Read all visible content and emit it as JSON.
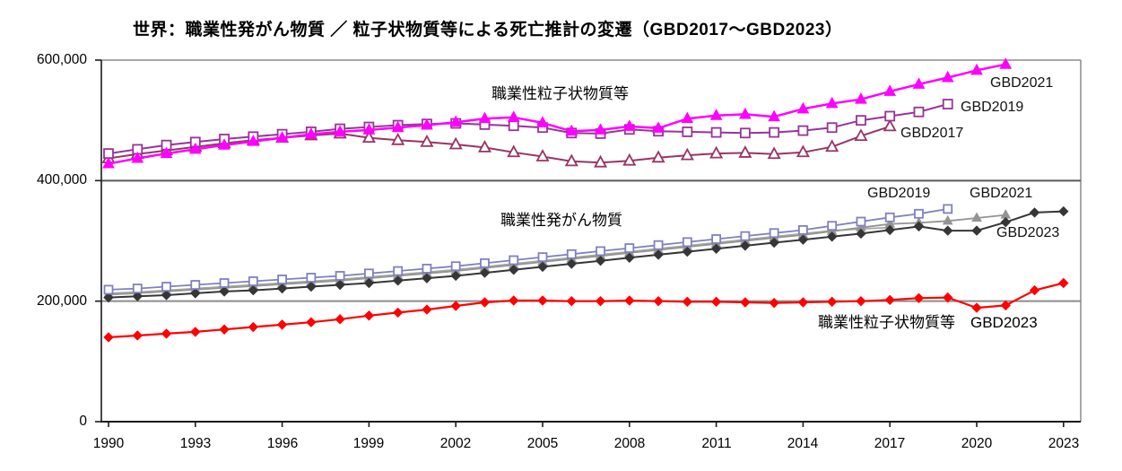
{
  "title": "世界：職業性発がん物質 ／ 粒子状物質等による死亡推計の変遷（GBD2017～GBD2023）",
  "y_axis": {
    "labels": [
      "600,000",
      "400,000",
      "200,000",
      "0"
    ],
    "values": [
      600000,
      400000,
      200000,
      0
    ]
  },
  "x_axis": {
    "labels": [
      "1990",
      "1993",
      "1996",
      "1999",
      "2002",
      "2005",
      "2008",
      "2011",
      "2014",
      "2017",
      "2020",
      "2023"
    ],
    "years": [
      1990,
      1993,
      1996,
      1999,
      2002,
      2005,
      2008,
      2011,
      2014,
      2017,
      2020,
      2023
    ]
  },
  "annotations": {
    "upper_group": "職業性粒子状物質等",
    "lower_group": "職業性発がん物質",
    "red_series": "職業性粒子状物質等　GBD2023",
    "p_gbd2021": "GBD2021",
    "p_gbd2019": "GBD2019",
    "p_gbd2017": "GBD2017",
    "c_gbd2019": "GBD2019",
    "c_gbd2021": "GBD2021",
    "c_gbd2023": "GBD2023"
  },
  "chart_data": {
    "type": "line",
    "title": "世界：職業性発がん物質 ／ 粒子状物質等による死亡推計の変遷（GBD2017～GBD2023）",
    "xlabel": "",
    "ylabel": "",
    "ylim": [
      0,
      600000
    ],
    "xlim": [
      1990,
      2023
    ],
    "gridlines_y": [
      200000,
      400000
    ],
    "grid": "horizontal-only",
    "legend_position": "inline-annotations",
    "x_step_years": 1,
    "series": [
      {
        "name": "carcinogens-GBD2017",
        "group": "職業性発がん物質",
        "label": "GBD2017",
        "color": "#a6a6a6",
        "marker": "none",
        "marker_size": 0,
        "line_width": 1.8,
        "start_year": 1990,
        "values": [
          213000,
          215000,
          218000,
          221000,
          224000,
          227000,
          230000,
          233000,
          236000,
          240000,
          244000,
          248000,
          252000,
          257000,
          262000,
          267000,
          272000,
          277000,
          282000,
          287000,
          292000,
          297000,
          302000,
          307000,
          312000,
          317000,
          320000,
          322000
        ]
      },
      {
        "name": "carcinogens-GBD2021",
        "group": "職業性発がん物質",
        "label": "GBD2021",
        "color": "#949494",
        "marker": "triangle-filled",
        "marker_size": 9,
        "line_width": 1.8,
        "start_year": 1990,
        "values": [
          211000,
          213000,
          216000,
          219000,
          222000,
          225000,
          228000,
          231000,
          234000,
          238000,
          242000,
          246000,
          250000,
          255000,
          260000,
          265000,
          270000,
          275000,
          280000,
          285000,
          290000,
          295000,
          300000,
          305000,
          310000,
          316000,
          322000,
          328000,
          330000,
          333000,
          338000,
          343000
        ]
      },
      {
        "name": "carcinogens-GBD2023",
        "group": "職業性発がん物質",
        "label": "GBD2023",
        "color": "#363636",
        "marker": "diamond-filled",
        "marker_size": 10,
        "line_width": 2,
        "start_year": 1990,
        "values": [
          206000,
          208000,
          210000,
          213000,
          216000,
          218000,
          221000,
          224000,
          227000,
          230000,
          234000,
          238000,
          242000,
          247000,
          252000,
          257000,
          262000,
          267000,
          272000,
          277000,
          282000,
          287000,
          292000,
          297000,
          302000,
          307000,
          312000,
          318000,
          324000,
          317000,
          317000,
          331000,
          347000,
          349000
        ]
      },
      {
        "name": "carcinogens-GBD2019",
        "group": "職業性発がん物質",
        "label": "GBD2019",
        "color": "#8080c0",
        "marker": "square-open",
        "marker_size": 9,
        "line_width": 1.8,
        "start_year": 1990,
        "values": [
          219000,
          221000,
          224000,
          227000,
          230000,
          233000,
          236000,
          239000,
          242000,
          246000,
          250000,
          254000,
          258000,
          263000,
          268000,
          273000,
          278000,
          283000,
          288000,
          293000,
          298000,
          303000,
          308000,
          313000,
          318000,
          325000,
          332000,
          339000,
          345000,
          353000
        ]
      },
      {
        "name": "particulates-GBD2017",
        "group": "職業性粒子状物質等",
        "label": "GBD2017",
        "color": "#993366",
        "marker": "triangle-open",
        "marker_size": 11,
        "line_width": 2,
        "start_year": 1990,
        "values": [
          437000,
          444000,
          450000,
          456000,
          462000,
          467000,
          471000,
          475000,
          478000,
          471000,
          467000,
          464000,
          460000,
          455000,
          447000,
          440000,
          432000,
          430000,
          433000,
          438000,
          442000,
          445000,
          446000,
          444000,
          447000,
          456000,
          474000,
          490000
        ]
      },
      {
        "name": "particulates-GBD2019",
        "group": "職業性粒子状物質等",
        "label": "GBD2019",
        "color": "#993399",
        "marker": "square-open",
        "marker_size": 10,
        "line_width": 2,
        "start_year": 1990,
        "values": [
          445000,
          452000,
          459000,
          464000,
          469000,
          473000,
          477000,
          481000,
          486000,
          489000,
          492000,
          494000,
          495000,
          493000,
          491000,
          488000,
          479000,
          478000,
          485000,
          482000,
          481000,
          480000,
          479000,
          480000,
          483000,
          488000,
          500000,
          507000,
          514000,
          527000
        ]
      },
      {
        "name": "particulates-GBD2021",
        "group": "職業性粒子状物質等",
        "label": "GBD2021",
        "color": "#ff00ff",
        "marker": "triangle-filled",
        "marker_size": 11,
        "line_width": 2.5,
        "start_year": 1990,
        "values": [
          428000,
          437000,
          445000,
          452000,
          459000,
          465000,
          471000,
          477000,
          481000,
          484000,
          488000,
          492000,
          497000,
          503000,
          505000,
          496000,
          482000,
          484000,
          490000,
          487000,
          503000,
          508000,
          510000,
          506000,
          519000,
          528000,
          535000,
          548000,
          560000,
          571000,
          583000,
          593000
        ]
      },
      {
        "name": "particulates-GBD2023",
        "group": "職業性粒子状物質等",
        "label": "GBD2023",
        "color": "#ff0000",
        "marker": "diamond-filled",
        "marker_size": 10,
        "line_width": 2.2,
        "start_year": 1990,
        "values": [
          140000,
          143000,
          146000,
          149000,
          153000,
          157000,
          161000,
          165000,
          170000,
          176000,
          181000,
          186000,
          192000,
          198000,
          201000,
          201000,
          200000,
          200000,
          201000,
          200000,
          199000,
          199000,
          198000,
          197000,
          198000,
          199000,
          200000,
          202000,
          205000,
          206000,
          189000,
          193000,
          218000,
          230000
        ]
      }
    ]
  },
  "colors": {
    "axis": "#1a1a1a",
    "border": "#8c8c8c",
    "grid_200k": "#8c8c8c",
    "grid_400k": "#595959",
    "background": "#ffffff"
  }
}
